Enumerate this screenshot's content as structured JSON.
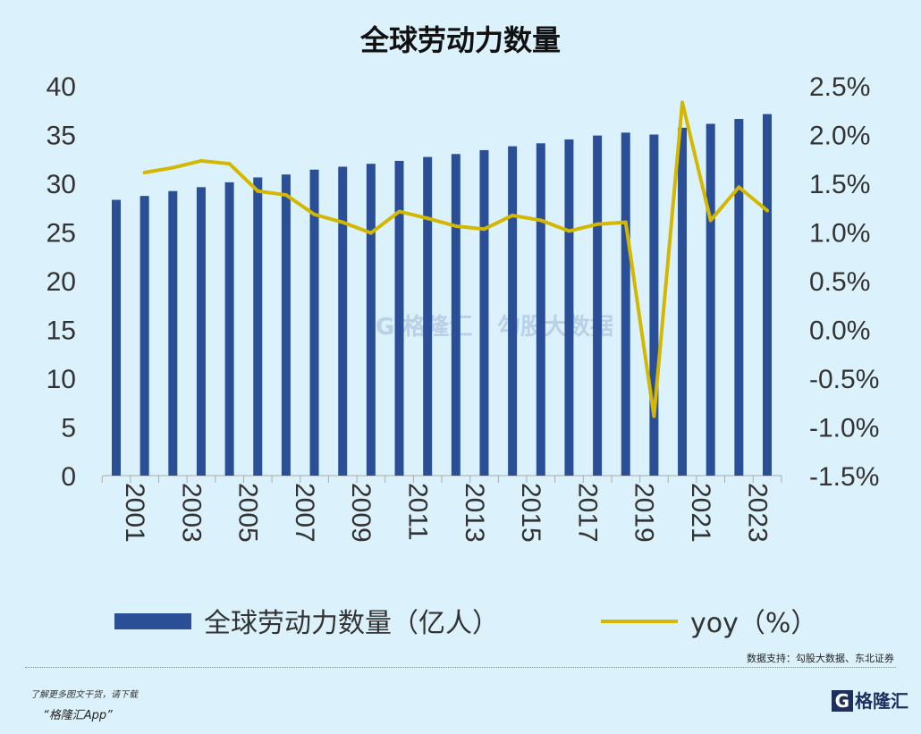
{
  "chart_data": {
    "type": "bar+line",
    "title": "全球劳动力数量",
    "categories": [
      "2001",
      "2002",
      "2003",
      "2004",
      "2005",
      "2006",
      "2007",
      "2008",
      "2009",
      "2010",
      "2011",
      "2012",
      "2013",
      "2014",
      "2015",
      "2016",
      "2017",
      "2018",
      "2019",
      "2020",
      "2021",
      "2022",
      "2023",
      "2024"
    ],
    "x_tick_labels": [
      "2001",
      "2003",
      "2005",
      "2007",
      "2009",
      "2011",
      "2013",
      "2015",
      "2017",
      "2019",
      "2021",
      "2023"
    ],
    "series": [
      {
        "name": "全球劳动力数量（亿人）",
        "type": "bar",
        "axis": "left",
        "color": "#2a4f97",
        "values": [
          28.3,
          28.7,
          29.2,
          29.6,
          30.1,
          30.6,
          30.9,
          31.4,
          31.7,
          32.0,
          32.3,
          32.7,
          33.0,
          33.4,
          33.8,
          34.1,
          34.5,
          34.9,
          35.2,
          35.0,
          35.7,
          36.1,
          36.6,
          37.1
        ]
      },
      {
        "name": "yoy（%）",
        "type": "line",
        "axis": "right",
        "color": "#d4b800",
        "values": [
          null,
          1.61,
          1.66,
          1.73,
          1.7,
          1.42,
          1.38,
          1.18,
          1.1,
          0.99,
          1.21,
          1.14,
          1.06,
          1.03,
          1.17,
          1.12,
          1.01,
          1.08,
          1.1,
          -0.89,
          2.33,
          1.12,
          1.46,
          1.22
        ]
      }
    ],
    "y_left": {
      "lim": [
        0,
        40
      ],
      "ticks": [
        "0",
        "5",
        "10",
        "15",
        "20",
        "25",
        "30",
        "35",
        "40"
      ]
    },
    "y_right": {
      "lim": [
        -1.5,
        2.5
      ],
      "ticks": [
        "-1.5%",
        "-1.0%",
        "-0.5%",
        "0.0%",
        "0.5%",
        "1.0%",
        "1.5%",
        "2.0%",
        "2.5%"
      ]
    },
    "grid": false,
    "legend_position": "bottom"
  },
  "source": "数据支持：勾股大数据、东北证券",
  "watermark": "格隆汇 | 勾股大数据 www.gogudata.com",
  "promo_line1": "了解更多图文干货，请下载",
  "promo_line2": "“格隆汇App”",
  "logo": "格隆汇"
}
